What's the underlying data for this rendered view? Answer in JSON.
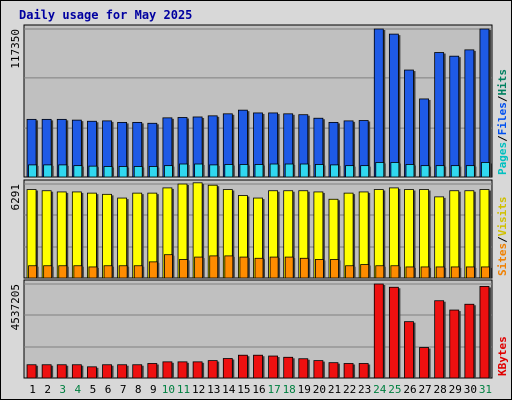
{
  "chart_data": {
    "type": "bar",
    "title": "Daily usage for May 2025",
    "days": [
      "1",
      "2",
      "3",
      "4",
      "5",
      "6",
      "7",
      "8",
      "9",
      "10",
      "11",
      "12",
      "13",
      "14",
      "15",
      "16",
      "17",
      "18",
      "19",
      "20",
      "21",
      "22",
      "23",
      "24",
      "25",
      "26",
      "27",
      "28",
      "29",
      "30",
      "31"
    ],
    "weekend_days": [
      "3",
      "4",
      "10",
      "11",
      "17",
      "18",
      "24",
      "25",
      "31"
    ],
    "panels": [
      {
        "id": "hits",
        "max_label": "117350",
        "max_value": 117350,
        "legend": [
          {
            "label": "Pages",
            "color": "#00c0c0"
          },
          {
            "label": "/",
            "color": "#000000"
          },
          {
            "label": "Files",
            "color": "#0050f0"
          },
          {
            "label": "/",
            "color": "#000000"
          },
          {
            "label": "Hits",
            "color": "#008060"
          }
        ],
        "series": [
          {
            "name": "Hits",
            "color": "#1e5ae6",
            "values": [
              45700,
              45700,
              45700,
              45100,
              44200,
              44500,
              43300,
              43300,
              42600,
              46900,
              47200,
              47600,
              48500,
              50100,
              53000,
              50800,
              50800,
              50100,
              49400,
              46600,
              43300,
              44500,
              44800,
              117350,
              113300,
              84800,
              61900,
              98700,
              95800,
              100800,
              117350
            ]
          },
          {
            "name": "Pages",
            "color": "#30d8f0",
            "values": [
              9600,
              9600,
              9600,
              9000,
              8600,
              8300,
              8300,
              8300,
              8300,
              9000,
              10300,
              10300,
              9600,
              9900,
              9900,
              9900,
              10300,
              10300,
              10300,
              9900,
              9600,
              9000,
              9000,
              11500,
              11500,
              9900,
              9000,
              9000,
              9000,
              9000,
              11500
            ]
          }
        ]
      },
      {
        "id": "sites",
        "max_label": "6291",
        "max_value": 6291,
        "legend": [
          {
            "label": "Sites",
            "color": "#f08000"
          },
          {
            "label": "/",
            "color": "#000000"
          },
          {
            "label": "Visits",
            "color": "#d0c000"
          }
        ],
        "series": [
          {
            "name": "Visits",
            "color": "#ffff00",
            "values": [
              5920,
              5840,
              5760,
              5760,
              5680,
              5600,
              5350,
              5680,
              5680,
              6030,
              6290,
              6370,
              6210,
              5920,
              5520,
              5350,
              5840,
              5840,
              5840,
              5760,
              5270,
              5680,
              5760,
              5920,
              6030,
              5920,
              5920,
              5430,
              5840,
              5840,
              5920
            ]
          },
          {
            "name": "Sites",
            "color": "#ff8c00",
            "values": [
              820,
              820,
              820,
              820,
              740,
              820,
              820,
              820,
              1080,
              1560,
              1240,
              1400,
              1480,
              1480,
              1400,
              1320,
              1400,
              1400,
              1320,
              1240,
              1240,
              820,
              900,
              820,
              820,
              740,
              740,
              740,
              740,
              740,
              740
            ]
          }
        ]
      },
      {
        "id": "kbytes",
        "max_label": "4537205",
        "max_value": 4537205,
        "legend": [
          {
            "label": "KBytes",
            "color": "#e00000"
          }
        ],
        "series": [
          {
            "name": "KBytes",
            "color": "#ee1010",
            "values": [
              640000,
              640000,
              640000,
              640000,
              540000,
              640000,
              640000,
              640000,
              700000,
              780000,
              780000,
              780000,
              840000,
              940000,
              1100000,
              1100000,
              1060000,
              1000000,
              930000,
              840000,
              740000,
              700000,
              700000,
              4537205,
              4380000,
              2720000,
              1470000,
              3730000,
              3280000,
              3560000,
              4420000
            ]
          }
        ]
      }
    ]
  }
}
